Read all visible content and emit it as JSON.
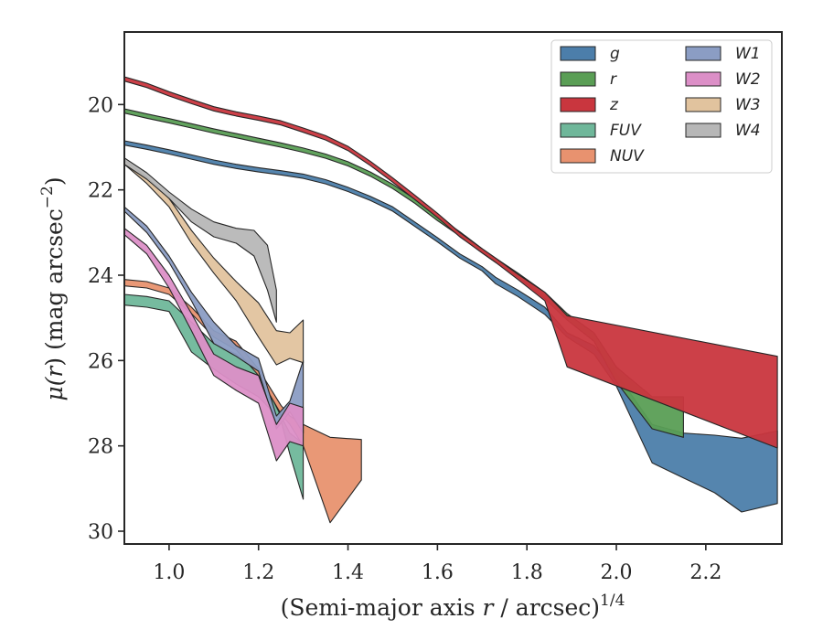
{
  "chart_data": {
    "type": "area",
    "xlabel": "(Semi-major axis r / arcsec)",
    "xlabel_parts": {
      "pre": "(Semi-major axis ",
      "var": "r",
      "post": " / arcsec)",
      "sup": "1/4"
    },
    "ylabel": "μ(r) (mag arcsec⁻²)",
    "ylabel_parts": {
      "pre": "μ(",
      "var": "r",
      "post": ") (mag arcsec",
      "sup": "−2",
      "close": ")"
    },
    "xlim": [
      0.9,
      2.37
    ],
    "ylim": [
      30.3,
      18.3
    ],
    "y_inverted": true,
    "xticks": [
      1.0,
      1.2,
      1.4,
      1.6,
      1.8,
      2.0,
      2.2
    ],
    "xtick_labels": [
      "1.0",
      "1.2",
      "1.4",
      "1.6",
      "1.8",
      "2.0",
      "2.2"
    ],
    "yticks": [
      20,
      22,
      24,
      26,
      28,
      30
    ],
    "ytick_labels": [
      "20",
      "22",
      "24",
      "26",
      "28",
      "30"
    ],
    "grid": false,
    "legend_position": "top-right",
    "legend_columns": 2,
    "series": [
      {
        "name": "g",
        "color": "#4c7eaa",
        "x": [
          0.9,
          0.95,
          1.0,
          1.05,
          1.1,
          1.15,
          1.2,
          1.25,
          1.3,
          1.35,
          1.4,
          1.45,
          1.5,
          1.55,
          1.6,
          1.65,
          1.7,
          1.73,
          1.78,
          1.84,
          1.89,
          1.95,
          2.0,
          2.08,
          2.15,
          2.22,
          2.28,
          2.36
        ],
        "lower": [
          20.85,
          20.95,
          21.06,
          21.18,
          21.3,
          21.4,
          21.48,
          21.55,
          21.63,
          21.76,
          21.94,
          22.15,
          22.4,
          22.76,
          23.12,
          23.5,
          23.8,
          24.05,
          24.35,
          24.75,
          25.35,
          25.65,
          26.3,
          27.5,
          27.7,
          27.75,
          27.82,
          27.65
        ],
        "upper": [
          20.95,
          21.05,
          21.16,
          21.28,
          21.4,
          21.5,
          21.58,
          21.65,
          21.73,
          21.86,
          22.04,
          22.25,
          22.5,
          22.86,
          23.22,
          23.6,
          23.9,
          24.2,
          24.5,
          24.92,
          25.45,
          25.85,
          26.6,
          28.4,
          28.75,
          29.1,
          29.55,
          29.35
        ]
      },
      {
        "name": "r",
        "color": "#5a9e55",
        "x": [
          0.9,
          0.95,
          1.0,
          1.05,
          1.1,
          1.15,
          1.2,
          1.25,
          1.3,
          1.35,
          1.4,
          1.45,
          1.5,
          1.55,
          1.6,
          1.65,
          1.7,
          1.73,
          1.78,
          1.84,
          1.89,
          1.95,
          2.0,
          2.08,
          2.15
        ],
        "lower": [
          20.1,
          20.22,
          20.33,
          20.45,
          20.57,
          20.68,
          20.79,
          20.9,
          21.02,
          21.16,
          21.34,
          21.58,
          21.87,
          22.22,
          22.62,
          22.98,
          23.38,
          23.6,
          23.95,
          24.4,
          24.9,
          25.35,
          26.15,
          26.85,
          26.85
        ],
        "upper": [
          20.2,
          20.32,
          20.43,
          20.55,
          20.67,
          20.78,
          20.89,
          21.0,
          21.12,
          21.26,
          21.44,
          21.68,
          21.97,
          22.32,
          22.72,
          23.08,
          23.48,
          23.7,
          24.05,
          24.55,
          25.05,
          25.55,
          26.5,
          27.6,
          27.8
        ]
      },
      {
        "name": "z",
        "color": "#c9363e",
        "x": [
          0.9,
          0.95,
          1.0,
          1.05,
          1.1,
          1.15,
          1.2,
          1.25,
          1.3,
          1.35,
          1.4,
          1.45,
          1.5,
          1.55,
          1.6,
          1.65,
          1.7,
          1.73,
          1.78,
          1.84,
          1.89,
          2.36
        ],
        "lower": [
          19.35,
          19.5,
          19.7,
          19.88,
          20.05,
          20.17,
          20.27,
          20.38,
          20.55,
          20.73,
          20.98,
          21.33,
          21.72,
          22.13,
          22.55,
          23.0,
          23.38,
          23.6,
          23.98,
          24.4,
          24.95,
          25.9
        ],
        "upper": [
          19.45,
          19.6,
          19.8,
          19.98,
          20.15,
          20.27,
          20.37,
          20.48,
          20.65,
          20.83,
          21.08,
          21.43,
          21.82,
          22.23,
          22.65,
          23.1,
          23.48,
          23.7,
          24.1,
          24.6,
          26.15,
          28.05
        ]
      },
      {
        "name": "FUV",
        "color": "#6fb79a",
        "x": [
          0.9,
          0.95,
          1.0,
          1.05,
          1.1,
          1.15,
          1.2,
          1.25,
          1.27,
          1.3
        ],
        "lower": [
          24.45,
          24.5,
          24.6,
          25.1,
          25.6,
          25.85,
          26.25,
          27.3,
          27.7,
          27.95
        ],
        "upper": [
          24.7,
          24.75,
          24.85,
          25.8,
          26.2,
          26.55,
          26.85,
          27.4,
          28.2,
          29.25
        ]
      },
      {
        "name": "NUV",
        "color": "#e8926f",
        "x": [
          0.9,
          0.95,
          1.0,
          1.05,
          1.1,
          1.15,
          1.2,
          1.25,
          1.27,
          1.3,
          1.36,
          1.43
        ],
        "lower": [
          24.1,
          24.15,
          24.3,
          24.75,
          25.3,
          25.55,
          26.2,
          27.05,
          27.3,
          27.5,
          27.8,
          27.85
        ],
        "upper": [
          24.25,
          24.3,
          24.45,
          24.9,
          25.45,
          25.75,
          26.35,
          27.25,
          27.5,
          28.0,
          29.8,
          28.8
        ]
      },
      {
        "name": "W1",
        "color": "#8b9dc4",
        "x": [
          0.9,
          0.95,
          1.0,
          1.05,
          1.1,
          1.15,
          1.2,
          1.24,
          1.27,
          1.3
        ],
        "lower": [
          22.4,
          22.85,
          23.55,
          24.4,
          25.1,
          25.65,
          25.95,
          27.3,
          26.95,
          26.0
        ],
        "upper": [
          22.5,
          23.0,
          23.7,
          24.6,
          25.6,
          25.9,
          26.25,
          27.6,
          27.2,
          27.7
        ]
      },
      {
        "name": "W2",
        "color": "#dc8fc7",
        "x": [
          0.9,
          0.95,
          1.0,
          1.05,
          1.1,
          1.15,
          1.2,
          1.24,
          1.27,
          1.3
        ],
        "lower": [
          22.9,
          23.3,
          24.0,
          24.9,
          25.85,
          26.15,
          26.35,
          27.5,
          27.0,
          27.1
        ],
        "upper": [
          23.05,
          23.5,
          24.3,
          25.3,
          26.35,
          26.7,
          27.0,
          28.35,
          27.9,
          28.0
        ]
      },
      {
        "name": "W3",
        "color": "#e1c39e",
        "x": [
          0.9,
          0.95,
          1.0,
          1.05,
          1.1,
          1.15,
          1.2,
          1.24,
          1.27,
          1.3
        ],
        "lower": [
          21.3,
          21.7,
          22.2,
          22.95,
          23.6,
          24.15,
          24.65,
          25.3,
          25.35,
          25.05
        ],
        "upper": [
          21.4,
          21.85,
          22.4,
          23.25,
          23.95,
          24.6,
          25.45,
          26.1,
          25.95,
          26.05
        ]
      },
      {
        "name": "W4",
        "color": "#b7b7b7",
        "x": [
          0.9,
          0.95,
          1.0,
          1.05,
          1.1,
          1.15,
          1.19,
          1.22,
          1.24
        ],
        "lower": [
          21.25,
          21.6,
          22.05,
          22.45,
          22.75,
          22.9,
          22.95,
          23.3,
          24.35
        ],
        "upper": [
          21.4,
          21.75,
          22.2,
          22.75,
          23.1,
          23.25,
          23.55,
          24.35,
          25.1
        ]
      }
    ]
  }
}
